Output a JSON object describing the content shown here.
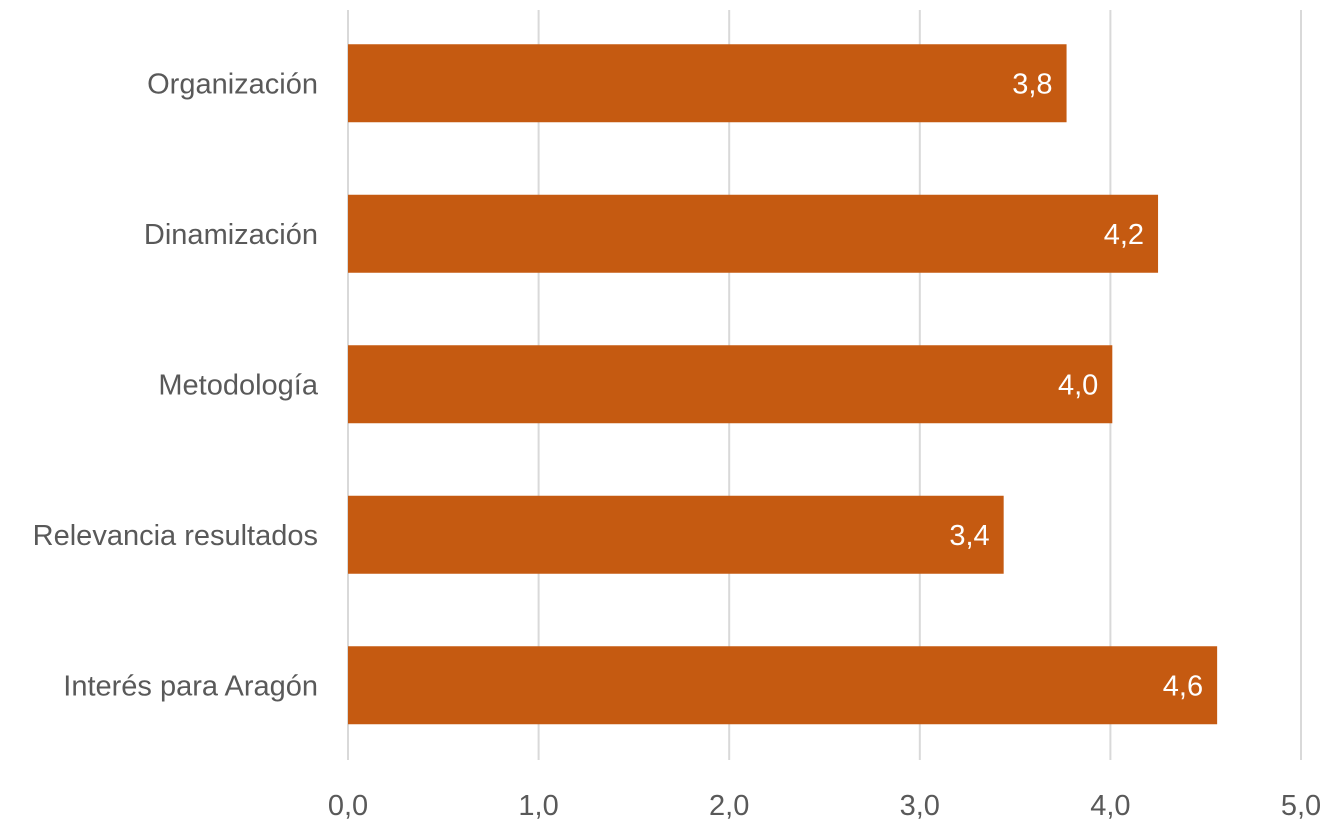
{
  "chart_data": {
    "type": "bar",
    "orientation": "horizontal",
    "categories": [
      "Organización",
      "Dinamización",
      "Metodología",
      "Relevancia resultados",
      "Interés para Aragón"
    ],
    "values": [
      3.77,
      4.25,
      4.01,
      3.44,
      4.56
    ],
    "data_labels": [
      "3,8",
      "4,2",
      "4,0",
      "3,4",
      "4,6"
    ],
    "title": "",
    "xlabel": "",
    "ylabel": "",
    "xlim": [
      0,
      5
    ],
    "x_ticks": [
      0,
      1,
      2,
      3,
      4,
      5
    ],
    "x_tick_labels": [
      "0,0",
      "1,0",
      "2,0",
      "3,0",
      "4,0",
      "5,0"
    ],
    "grid": "vertical",
    "legend": "none",
    "bar_color": "#c55a11",
    "label_color": "#595959",
    "grid_color": "#d9d9d9"
  }
}
